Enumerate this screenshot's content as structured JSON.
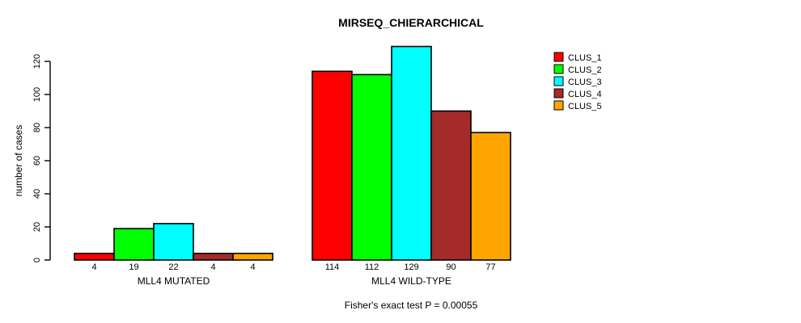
{
  "chart_data": {
    "type": "bar",
    "title": "MIRSEQ_CHIERARCHICAL",
    "subtitle": "Fisher's exact test P = 0.00055",
    "ylabel": "number of cases",
    "xlabel": "",
    "categories": [
      "MLL4 MUTATED",
      "MLL4 WILD-TYPE"
    ],
    "series": [
      {
        "name": "CLUS_1",
        "color": "#FF0000",
        "values": [
          4,
          114
        ]
      },
      {
        "name": "CLUS_2",
        "color": "#00FF00",
        "values": [
          19,
          112
        ]
      },
      {
        "name": "CLUS_3",
        "color": "#00FFFF",
        "values": [
          22,
          129
        ]
      },
      {
        "name": "CLUS_4",
        "color": "#A52A2A",
        "values": [
          4,
          90
        ]
      },
      {
        "name": "CLUS_5",
        "color": "#FFA500",
        "values": [
          4,
          77
        ]
      }
    ],
    "yticks": [
      0,
      20,
      40,
      60,
      80,
      100,
      120
    ],
    "ylim": [
      0,
      130
    ],
    "bar_value_labels": [
      [
        4,
        19,
        22,
        4,
        4
      ],
      [
        114,
        112,
        129,
        90,
        77
      ]
    ],
    "legend_position": "top-right",
    "legend_entries": [
      "CLUS_1",
      "CLUS_2",
      "CLUS_3",
      "CLUS_4",
      "CLUS_5"
    ],
    "grid": false,
    "bar_border_color": "#000000",
    "axis_color": "#000000",
    "background": "#FFFFFF"
  }
}
